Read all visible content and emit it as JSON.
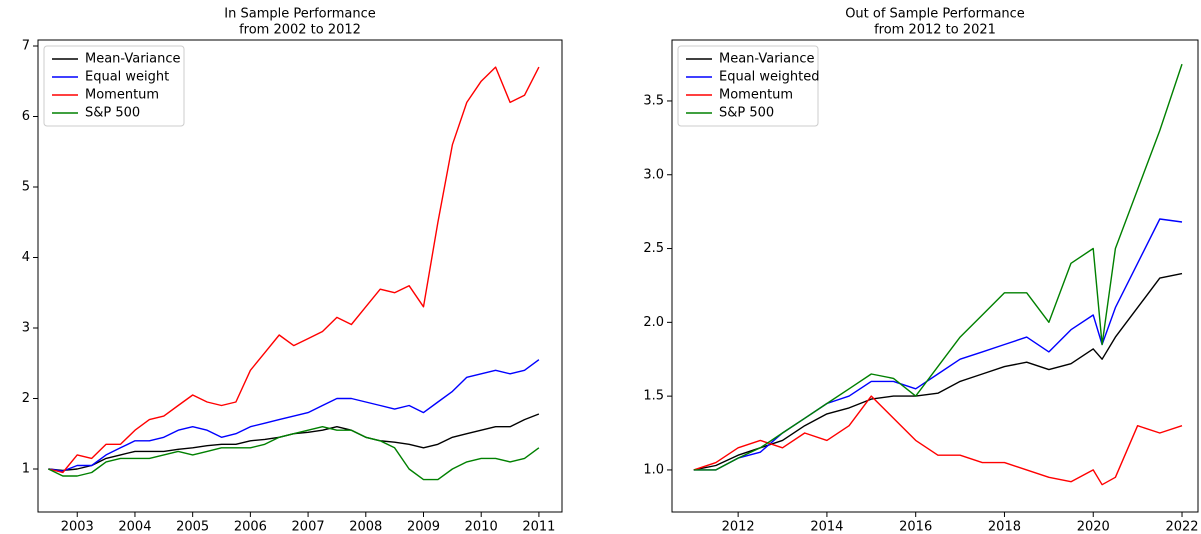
{
  "chart_data": [
    {
      "type": "line",
      "title": "In Sample Performance",
      "subtitle": "from 2002 to 2012",
      "legend": "upper left",
      "grid": false,
      "x": [
        2002.5,
        2002.75,
        2003,
        2003.25,
        2003.5,
        2003.75,
        2004,
        2004.25,
        2004.5,
        2004.75,
        2005,
        2005.25,
        2005.5,
        2005.75,
        2006,
        2006.25,
        2006.5,
        2006.75,
        2007,
        2007.25,
        2007.5,
        2007.75,
        2008,
        2008.25,
        2008.5,
        2008.75,
        2009,
        2009.25,
        2009.5,
        2009.75,
        2010,
        2010.25,
        2010.5,
        2010.75,
        2011
      ],
      "xlim": [
        2002.32,
        2011.4
      ],
      "xticks": [
        2003,
        2004,
        2005,
        2006,
        2007,
        2008,
        2009,
        2010,
        2011
      ],
      "ylim": [
        0.39,
        7.085
      ],
      "yticks": [
        1,
        2,
        3,
        4,
        5,
        6,
        7
      ],
      "series": [
        {
          "name": "Mean-Variance",
          "color": "#000000",
          "values": [
            1.0,
            0.98,
            1.0,
            1.05,
            1.15,
            1.2,
            1.25,
            1.25,
            1.25,
            1.28,
            1.3,
            1.33,
            1.35,
            1.35,
            1.4,
            1.42,
            1.45,
            1.5,
            1.52,
            1.55,
            1.6,
            1.55,
            1.45,
            1.4,
            1.38,
            1.35,
            1.3,
            1.35,
            1.45,
            1.5,
            1.55,
            1.6,
            1.6,
            1.7,
            1.78
          ]
        },
        {
          "name": "Equal weight",
          "color": "#0000ff",
          "values": [
            1.0,
            0.97,
            1.05,
            1.05,
            1.2,
            1.3,
            1.4,
            1.4,
            1.45,
            1.55,
            1.6,
            1.55,
            1.45,
            1.5,
            1.6,
            1.65,
            1.7,
            1.75,
            1.8,
            1.9,
            2.0,
            2.0,
            1.95,
            1.9,
            1.85,
            1.9,
            1.8,
            1.95,
            2.1,
            2.3,
            2.35,
            2.4,
            2.35,
            2.4,
            2.55
          ]
        },
        {
          "name": "Momentum",
          "color": "#ff0000",
          "values": [
            1.0,
            0.95,
            1.2,
            1.15,
            1.35,
            1.35,
            1.55,
            1.7,
            1.75,
            1.9,
            2.05,
            1.95,
            1.9,
            1.95,
            2.4,
            2.65,
            2.9,
            2.75,
            2.85,
            2.95,
            3.15,
            3.05,
            3.3,
            3.55,
            3.5,
            3.6,
            3.3,
            4.5,
            5.6,
            6.2,
            6.5,
            6.7,
            6.2,
            6.3,
            6.7
          ]
        },
        {
          "name": "S&P 500",
          "color": "#008000",
          "values": [
            1.0,
            0.9,
            0.9,
            0.95,
            1.1,
            1.15,
            1.15,
            1.15,
            1.2,
            1.25,
            1.2,
            1.25,
            1.3,
            1.3,
            1.3,
            1.35,
            1.45,
            1.5,
            1.55,
            1.6,
            1.55,
            1.55,
            1.45,
            1.4,
            1.3,
            1.0,
            0.85,
            0.85,
            1.0,
            1.1,
            1.15,
            1.15,
            1.1,
            1.15,
            1.3
          ]
        }
      ]
    },
    {
      "type": "line",
      "title": "Out of Sample Performance",
      "subtitle": "from 2012 to 2021",
      "legend": "upper left",
      "grid": false,
      "x": [
        2011,
        2011.5,
        2012,
        2012.5,
        2013,
        2013.5,
        2014,
        2014.5,
        2015,
        2015.5,
        2016,
        2016.5,
        2017,
        2017.5,
        2018,
        2018.5,
        2019,
        2019.5,
        2020,
        2020.2,
        2020.5,
        2021,
        2021.5,
        2022
      ],
      "xlim": [
        2010.51,
        2022.36
      ],
      "xticks": [
        2012,
        2014,
        2016,
        2018,
        2020,
        2022
      ],
      "ylim": [
        0.715,
        3.913
      ],
      "yticks": [
        {
          "value": 1,
          "label": "1.0"
        },
        1.5,
        {
          "value": 2,
          "label": "2.0"
        },
        2.5,
        {
          "value": 3,
          "label": "3.0"
        },
        3.5
      ],
      "series": [
        {
          "name": "Mean-Variance",
          "color": "#000000",
          "values": [
            1.0,
            1.03,
            1.1,
            1.15,
            1.2,
            1.3,
            1.38,
            1.42,
            1.48,
            1.5,
            1.5,
            1.52,
            1.6,
            1.65,
            1.7,
            1.73,
            1.68,
            1.72,
            1.82,
            1.75,
            1.9,
            2.1,
            2.3,
            2.33
          ]
        },
        {
          "name": "Equal weighted",
          "color": "#0000ff",
          "values": [
            1.0,
            1.0,
            1.08,
            1.12,
            1.25,
            1.35,
            1.45,
            1.5,
            1.6,
            1.6,
            1.55,
            1.65,
            1.75,
            1.8,
            1.85,
            1.9,
            1.8,
            1.95,
            2.05,
            1.85,
            2.1,
            2.4,
            2.7,
            2.68
          ]
        },
        {
          "name": "Momentum",
          "color": "#ff0000",
          "values": [
            1.0,
            1.05,
            1.15,
            1.2,
            1.15,
            1.25,
            1.2,
            1.3,
            1.5,
            1.35,
            1.2,
            1.1,
            1.1,
            1.05,
            1.05,
            1.0,
            0.95,
            0.92,
            1.0,
            0.9,
            0.95,
            1.3,
            1.25,
            1.3
          ]
        },
        {
          "name": "S&P 500",
          "color": "#008000",
          "values": [
            1.0,
            1.0,
            1.08,
            1.15,
            1.25,
            1.35,
            1.45,
            1.55,
            1.65,
            1.62,
            1.5,
            1.7,
            1.9,
            2.05,
            2.2,
            2.2,
            2.0,
            2.4,
            2.5,
            1.85,
            2.5,
            2.9,
            3.3,
            3.75
          ]
        }
      ]
    }
  ]
}
